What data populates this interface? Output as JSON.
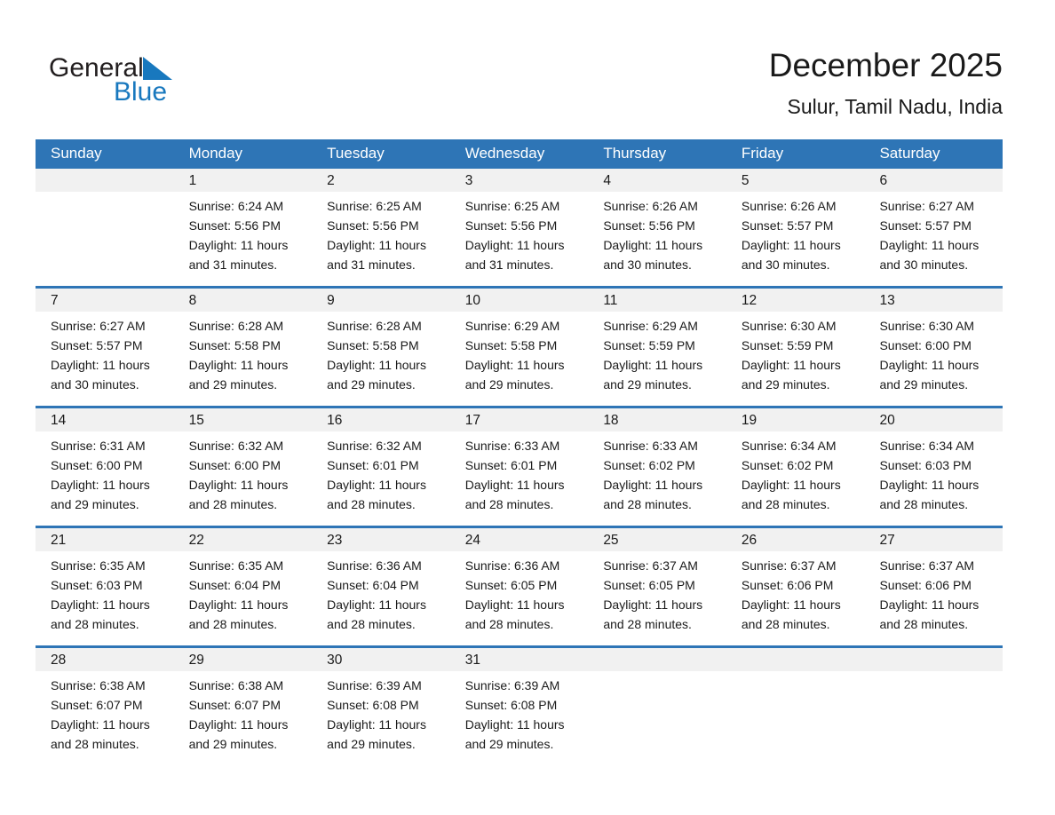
{
  "logo": {
    "line1": "General",
    "line2": "Blue"
  },
  "header": {
    "title": "December 2025",
    "subtitle": "Sulur, Tamil Nadu, India"
  },
  "weekdays": [
    "Sunday",
    "Monday",
    "Tuesday",
    "Wednesday",
    "Thursday",
    "Friday",
    "Saturday"
  ],
  "colors": {
    "header_blue": "#2E75B6",
    "band_gray": "#F1F1F1",
    "logo_blue": "#1878BE",
    "text_dark": "#1A1A1A"
  },
  "weeks": [
    [
      {
        "day": null
      },
      {
        "day": "1",
        "sunrise": "Sunrise: 6:24 AM",
        "sunset": "Sunset: 5:56 PM",
        "daylight_line1": "Daylight: 11 hours",
        "daylight_line2": "and 31 minutes."
      },
      {
        "day": "2",
        "sunrise": "Sunrise: 6:25 AM",
        "sunset": "Sunset: 5:56 PM",
        "daylight_line1": "Daylight: 11 hours",
        "daylight_line2": "and 31 minutes."
      },
      {
        "day": "3",
        "sunrise": "Sunrise: 6:25 AM",
        "sunset": "Sunset: 5:56 PM",
        "daylight_line1": "Daylight: 11 hours",
        "daylight_line2": "and 31 minutes."
      },
      {
        "day": "4",
        "sunrise": "Sunrise: 6:26 AM",
        "sunset": "Sunset: 5:56 PM",
        "daylight_line1": "Daylight: 11 hours",
        "daylight_line2": "and 30 minutes."
      },
      {
        "day": "5",
        "sunrise": "Sunrise: 6:26 AM",
        "sunset": "Sunset: 5:57 PM",
        "daylight_line1": "Daylight: 11 hours",
        "daylight_line2": "and 30 minutes."
      },
      {
        "day": "6",
        "sunrise": "Sunrise: 6:27 AM",
        "sunset": "Sunset: 5:57 PM",
        "daylight_line1": "Daylight: 11 hours",
        "daylight_line2": "and 30 minutes."
      }
    ],
    [
      {
        "day": "7",
        "sunrise": "Sunrise: 6:27 AM",
        "sunset": "Sunset: 5:57 PM",
        "daylight_line1": "Daylight: 11 hours",
        "daylight_line2": "and 30 minutes."
      },
      {
        "day": "8",
        "sunrise": "Sunrise: 6:28 AM",
        "sunset": "Sunset: 5:58 PM",
        "daylight_line1": "Daylight: 11 hours",
        "daylight_line2": "and 29 minutes."
      },
      {
        "day": "9",
        "sunrise": "Sunrise: 6:28 AM",
        "sunset": "Sunset: 5:58 PM",
        "daylight_line1": "Daylight: 11 hours",
        "daylight_line2": "and 29 minutes."
      },
      {
        "day": "10",
        "sunrise": "Sunrise: 6:29 AM",
        "sunset": "Sunset: 5:58 PM",
        "daylight_line1": "Daylight: 11 hours",
        "daylight_line2": "and 29 minutes."
      },
      {
        "day": "11",
        "sunrise": "Sunrise: 6:29 AM",
        "sunset": "Sunset: 5:59 PM",
        "daylight_line1": "Daylight: 11 hours",
        "daylight_line2": "and 29 minutes."
      },
      {
        "day": "12",
        "sunrise": "Sunrise: 6:30 AM",
        "sunset": "Sunset: 5:59 PM",
        "daylight_line1": "Daylight: 11 hours",
        "daylight_line2": "and 29 minutes."
      },
      {
        "day": "13",
        "sunrise": "Sunrise: 6:30 AM",
        "sunset": "Sunset: 6:00 PM",
        "daylight_line1": "Daylight: 11 hours",
        "daylight_line2": "and 29 minutes."
      }
    ],
    [
      {
        "day": "14",
        "sunrise": "Sunrise: 6:31 AM",
        "sunset": "Sunset: 6:00 PM",
        "daylight_line1": "Daylight: 11 hours",
        "daylight_line2": "and 29 minutes."
      },
      {
        "day": "15",
        "sunrise": "Sunrise: 6:32 AM",
        "sunset": "Sunset: 6:00 PM",
        "daylight_line1": "Daylight: 11 hours",
        "daylight_line2": "and 28 minutes."
      },
      {
        "day": "16",
        "sunrise": "Sunrise: 6:32 AM",
        "sunset": "Sunset: 6:01 PM",
        "daylight_line1": "Daylight: 11 hours",
        "daylight_line2": "and 28 minutes."
      },
      {
        "day": "17",
        "sunrise": "Sunrise: 6:33 AM",
        "sunset": "Sunset: 6:01 PM",
        "daylight_line1": "Daylight: 11 hours",
        "daylight_line2": "and 28 minutes."
      },
      {
        "day": "18",
        "sunrise": "Sunrise: 6:33 AM",
        "sunset": "Sunset: 6:02 PM",
        "daylight_line1": "Daylight: 11 hours",
        "daylight_line2": "and 28 minutes."
      },
      {
        "day": "19",
        "sunrise": "Sunrise: 6:34 AM",
        "sunset": "Sunset: 6:02 PM",
        "daylight_line1": "Daylight: 11 hours",
        "daylight_line2": "and 28 minutes."
      },
      {
        "day": "20",
        "sunrise": "Sunrise: 6:34 AM",
        "sunset": "Sunset: 6:03 PM",
        "daylight_line1": "Daylight: 11 hours",
        "daylight_line2": "and 28 minutes."
      }
    ],
    [
      {
        "day": "21",
        "sunrise": "Sunrise: 6:35 AM",
        "sunset": "Sunset: 6:03 PM",
        "daylight_line1": "Daylight: 11 hours",
        "daylight_line2": "and 28 minutes."
      },
      {
        "day": "22",
        "sunrise": "Sunrise: 6:35 AM",
        "sunset": "Sunset: 6:04 PM",
        "daylight_line1": "Daylight: 11 hours",
        "daylight_line2": "and 28 minutes."
      },
      {
        "day": "23",
        "sunrise": "Sunrise: 6:36 AM",
        "sunset": "Sunset: 6:04 PM",
        "daylight_line1": "Daylight: 11 hours",
        "daylight_line2": "and 28 minutes."
      },
      {
        "day": "24",
        "sunrise": "Sunrise: 6:36 AM",
        "sunset": "Sunset: 6:05 PM",
        "daylight_line1": "Daylight: 11 hours",
        "daylight_line2": "and 28 minutes."
      },
      {
        "day": "25",
        "sunrise": "Sunrise: 6:37 AM",
        "sunset": "Sunset: 6:05 PM",
        "daylight_line1": "Daylight: 11 hours",
        "daylight_line2": "and 28 minutes."
      },
      {
        "day": "26",
        "sunrise": "Sunrise: 6:37 AM",
        "sunset": "Sunset: 6:06 PM",
        "daylight_line1": "Daylight: 11 hours",
        "daylight_line2": "and 28 minutes."
      },
      {
        "day": "27",
        "sunrise": "Sunrise: 6:37 AM",
        "sunset": "Sunset: 6:06 PM",
        "daylight_line1": "Daylight: 11 hours",
        "daylight_line2": "and 28 minutes."
      }
    ],
    [
      {
        "day": "28",
        "sunrise": "Sunrise: 6:38 AM",
        "sunset": "Sunset: 6:07 PM",
        "daylight_line1": "Daylight: 11 hours",
        "daylight_line2": "and 28 minutes."
      },
      {
        "day": "29",
        "sunrise": "Sunrise: 6:38 AM",
        "sunset": "Sunset: 6:07 PM",
        "daylight_line1": "Daylight: 11 hours",
        "daylight_line2": "and 29 minutes."
      },
      {
        "day": "30",
        "sunrise": "Sunrise: 6:39 AM",
        "sunset": "Sunset: 6:08 PM",
        "daylight_line1": "Daylight: 11 hours",
        "daylight_line2": "and 29 minutes."
      },
      {
        "day": "31",
        "sunrise": "Sunrise: 6:39 AM",
        "sunset": "Sunset: 6:08 PM",
        "daylight_line1": "Daylight: 11 hours",
        "daylight_line2": "and 29 minutes."
      },
      {
        "day": null
      },
      {
        "day": null
      },
      {
        "day": null
      }
    ]
  ]
}
